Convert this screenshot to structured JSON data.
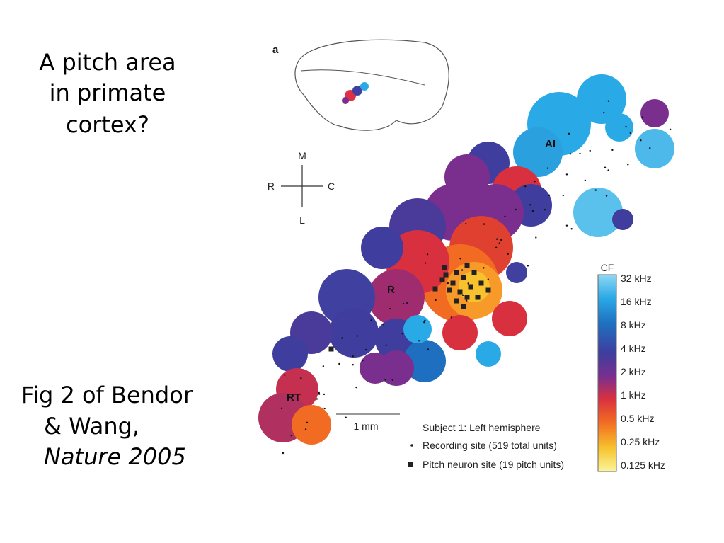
{
  "slide": {
    "title": [
      "A pitch area",
      "in primate",
      "cortex?"
    ],
    "citation": [
      "Fig 2 of Bendor",
      "& Wang,",
      "Nature 2005"
    ],
    "figure": {
      "panel_label": "a",
      "orientation": {
        "up": "M",
        "left": "R",
        "right": "C",
        "down": "L"
      },
      "regions": [
        "AI",
        "R",
        "RT"
      ],
      "scale_bar": "1 mm",
      "legend": [
        "Subject 1: Left hemisphere",
        "Recording site (519 total units)",
        "Pitch neuron site (19 pitch units)"
      ],
      "colorbar": {
        "title": "CF",
        "labels": [
          "32 kHz",
          "16 kHz",
          "8 kHz",
          "4 kHz",
          "2 kHz",
          "1 kHz",
          "0.5 kHz",
          "0.25 kHz",
          "0.125 kHz"
        ]
      }
    }
  }
}
